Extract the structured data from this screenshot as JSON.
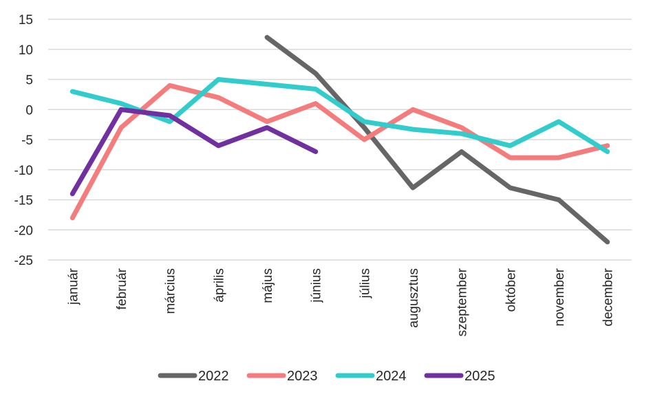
{
  "chart_data": {
    "type": "line",
    "title": "",
    "xlabel": "",
    "ylabel": "",
    "categories": [
      "január",
      "február",
      "március",
      "április",
      "május",
      "június",
      "július",
      "augusztus",
      "szeptember",
      "október",
      "november",
      "december"
    ],
    "ylim": [
      -25,
      15
    ],
    "yticks": [
      15,
      10,
      5,
      0,
      -5,
      -10,
      -15,
      -20,
      -25
    ],
    "grid": true,
    "legend_position": "bottom",
    "series": [
      {
        "name": "2022",
        "color": "#666666",
        "values": [
          null,
          null,
          null,
          null,
          12,
          6,
          -3,
          -13,
          -7,
          -13,
          -15,
          -22
        ]
      },
      {
        "name": "2023",
        "color": "#F47C7C",
        "values": [
          -18,
          -3,
          4,
          2,
          -2,
          1,
          -5,
          0,
          -3,
          -8,
          -8,
          -6
        ]
      },
      {
        "name": "2024",
        "color": "#33CCCC",
        "values": [
          3,
          1,
          -2,
          5,
          4.2,
          3.4,
          -2,
          -3.3,
          -4,
          -6,
          -2,
          -7
        ]
      },
      {
        "name": "2025",
        "color": "#7030A0",
        "values": [
          -14,
          0,
          -1,
          -6,
          -3,
          -7,
          null,
          null,
          null,
          null,
          null,
          null
        ]
      }
    ]
  }
}
